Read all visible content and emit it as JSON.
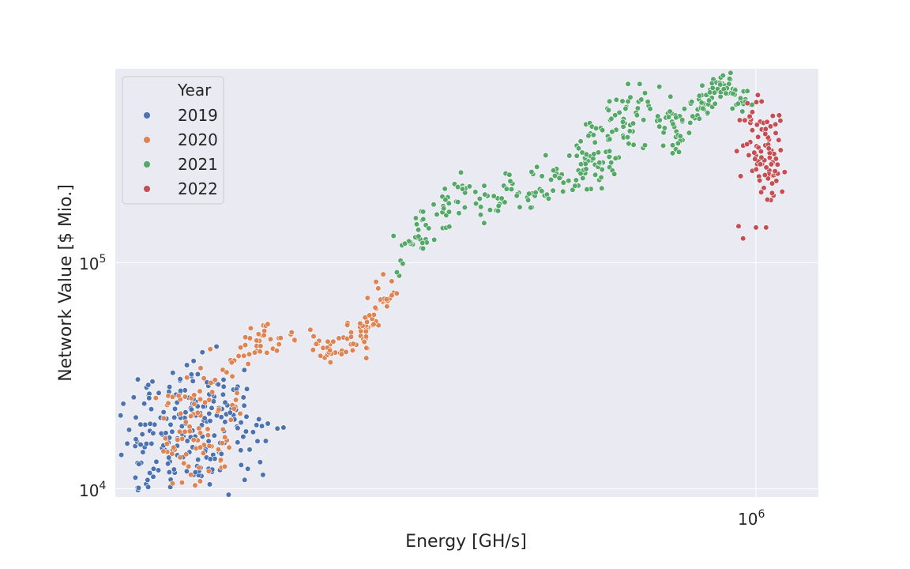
{
  "chart_data": {
    "type": "scatter",
    "title": "",
    "xlabel": "Energy [GH/s]",
    "ylabel": "Network Value [$ Mio.]",
    "xscale": "log",
    "yscale": "log",
    "xlim": [
      46000,
      1350000
    ],
    "ylim": [
      9200,
      720000
    ],
    "x_ticks": [
      {
        "base": "10",
        "exp": "6",
        "value": 1000000
      }
    ],
    "y_ticks": [
      {
        "base": "10",
        "exp": "4",
        "value": 10000
      },
      {
        "base": "10",
        "exp": "5",
        "value": 100000
      }
    ],
    "grid": true,
    "legend": {
      "title": "Year",
      "placement": "top-left"
    },
    "series": [
      {
        "name": "2019",
        "color": "#4c72b0",
        "clusters": [
          {
            "x": 57000,
            "y": 16500,
            "sx": 0.09,
            "sy": 0.12,
            "n": 75
          },
          {
            "x": 56000,
            "y": 12000,
            "sx": 0.08,
            "sy": 0.07,
            "n": 25
          },
          {
            "x": 66000,
            "y": 27000,
            "sx": 0.07,
            "sy": 0.08,
            "n": 40
          },
          {
            "x": 70000,
            "y": 19000,
            "sx": 0.08,
            "sy": 0.1,
            "n": 45
          },
          {
            "x": 73000,
            "y": 12500,
            "sx": 0.06,
            "sy": 0.05,
            "n": 20
          },
          {
            "x": 78000,
            "y": 20500,
            "sx": 0.05,
            "sy": 0.07,
            "n": 35
          }
        ]
      },
      {
        "name": "2020",
        "color": "#dd8452",
        "segments": [
          {
            "x1": 58000,
            "y1": 14000,
            "x2": 68000,
            "y2": 17000,
            "n": 12,
            "jx": 0.05,
            "jy": 0.06
          },
          {
            "x1": 62000,
            "y1": 20000,
            "x2": 76000,
            "y2": 26000,
            "n": 50,
            "jx": 0.05,
            "jy": 0.1
          },
          {
            "x1": 67000,
            "y1": 13000,
            "x2": 74000,
            "y2": 16000,
            "n": 25,
            "jx": 0.04,
            "jy": 0.07
          },
          {
            "x1": 80000,
            "y1": 33000,
            "x2": 85000,
            "y2": 43000,
            "n": 10,
            "jx": 0.02,
            "jy": 0.04
          },
          {
            "x1": 85000,
            "y1": 43000,
            "x2": 108000,
            "y2": 46000,
            "n": 30,
            "jx": 0.03,
            "jy": 0.035
          },
          {
            "x1": 120000,
            "y1": 40000,
            "x2": 150000,
            "y2": 44000,
            "n": 45,
            "jx": 0.03,
            "jy": 0.04
          },
          {
            "x1": 150000,
            "y1": 47000,
            "x2": 172000,
            "y2": 82000,
            "n": 40,
            "jx": 0.02,
            "jy": 0.04
          }
        ]
      },
      {
        "name": "2021",
        "color": "#55a868",
        "segments": [
          {
            "x1": 175000,
            "y1": 87000,
            "x2": 185000,
            "y2": 125000,
            "n": 6,
            "jx": 0.02,
            "jy": 0.04
          },
          {
            "x1": 185000,
            "y1": 125000,
            "x2": 215000,
            "y2": 150000,
            "n": 28,
            "jx": 0.03,
            "jy": 0.035
          },
          {
            "x1": 215000,
            "y1": 175000,
            "x2": 260000,
            "y2": 225000,
            "n": 28,
            "jx": 0.03,
            "jy": 0.03
          },
          {
            "x1": 260000,
            "y1": 165000,
            "x2": 330000,
            "y2": 218000,
            "n": 30,
            "jx": 0.03,
            "jy": 0.04
          },
          {
            "x1": 330000,
            "y1": 200000,
            "x2": 440000,
            "y2": 270000,
            "n": 45,
            "jx": 0.03,
            "jy": 0.04
          },
          {
            "x1": 440000,
            "y1": 270000,
            "x2": 560000,
            "y2": 470000,
            "n": 85,
            "jx": 0.03,
            "jy": 0.08
          },
          {
            "x1": 560000,
            "y1": 420000,
            "x2": 660000,
            "y2": 470000,
            "n": 25,
            "jx": 0.03,
            "jy": 0.05
          },
          {
            "x1": 660000,
            "y1": 350000,
            "x2": 740000,
            "y2": 420000,
            "n": 25,
            "jx": 0.02,
            "jy": 0.05
          },
          {
            "x1": 740000,
            "y1": 480000,
            "x2": 850000,
            "y2": 620000,
            "n": 45,
            "jx": 0.02,
            "jy": 0.03
          },
          {
            "x1": 850000,
            "y1": 620000,
            "x2": 950000,
            "y2": 500000,
            "n": 35,
            "jx": 0.02,
            "jy": 0.03
          }
        ]
      },
      {
        "name": "2022",
        "color": "#c44e52",
        "segments": [
          {
            "x1": 940000,
            "y1": 450000,
            "x2": 1090000,
            "y2": 360000,
            "n": 35,
            "jx": 0.02,
            "jy": 0.07
          },
          {
            "x1": 960000,
            "y1": 290000,
            "x2": 1070000,
            "y2": 330000,
            "n": 25,
            "jx": 0.025,
            "jy": 0.06
          },
          {
            "x1": 1040000,
            "y1": 235000,
            "x2": 1130000,
            "y2": 255000,
            "n": 22,
            "jx": 0.02,
            "jy": 0.04
          },
          {
            "x1": 1070000,
            "y1": 185000,
            "x2": 1075000,
            "y2": 200000,
            "n": 4,
            "jx": 0.01,
            "jy": 0.02
          }
        ],
        "points": [
          {
            "x": 920000,
            "y": 145000
          },
          {
            "x": 940000,
            "y": 128000
          },
          {
            "x": 1000000,
            "y": 143000
          },
          {
            "x": 1050000,
            "y": 143000
          }
        ]
      }
    ]
  }
}
